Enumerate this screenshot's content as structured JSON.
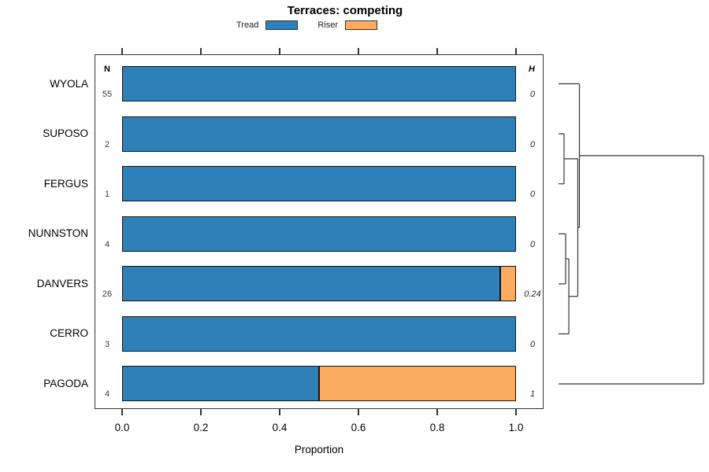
{
  "chart_data": {
    "type": "bar",
    "orientation": "horizontal",
    "stacked": true,
    "title": "Terraces: competing",
    "xlabel": "Proportion",
    "xlim": [
      0,
      1
    ],
    "x_ticks": [
      "0.0",
      "0.2",
      "0.4",
      "0.6",
      "0.8",
      "1.0"
    ],
    "grid": false,
    "legend_position": "top-center",
    "categories": [
      "WYOLA",
      "SUPOSO",
      "FERGUS",
      "NUNNSTON",
      "DANVERS",
      "CERRO",
      "PAGODA"
    ],
    "columns": {
      "n_header": "N",
      "h_header": "H"
    },
    "n_values": [
      "55",
      "2",
      "1",
      "4",
      "26",
      "3",
      "4"
    ],
    "h_values": [
      "0",
      "0",
      "0",
      "0",
      "0.24",
      "0",
      "1"
    ],
    "series": [
      {
        "name": "Tread",
        "color": "#2E81B8",
        "values": [
          1,
          1,
          1,
          1,
          0.96,
          1,
          0.5
        ]
      },
      {
        "name": "Riser",
        "color": "#FBAC61",
        "values": [
          0,
          0,
          0,
          0,
          0.04,
          0,
          0.5
        ]
      }
    ],
    "colors": {
      "bar_border": "#141414",
      "axis": "#333333"
    },
    "dendrogram": {
      "leaves": [
        "WYOLA",
        "SUPOSO",
        "FERGUS",
        "NUNNSTON",
        "DANVERS",
        "CERRO",
        "PAGODA"
      ],
      "merges": [
        {
          "left": "L1",
          "right": "L2",
          "height": 0.038
        },
        {
          "left": "L3",
          "right": "L4",
          "height": 0.049
        },
        {
          "left": "M1",
          "right": "L5",
          "height": 0.071
        },
        {
          "left": "M0",
          "right": "M2",
          "height": 0.133
        },
        {
          "left": "L0",
          "right": "M3",
          "height": 0.144
        },
        {
          "left": "M4",
          "right": "L6",
          "height": 1.0
        }
      ]
    }
  }
}
